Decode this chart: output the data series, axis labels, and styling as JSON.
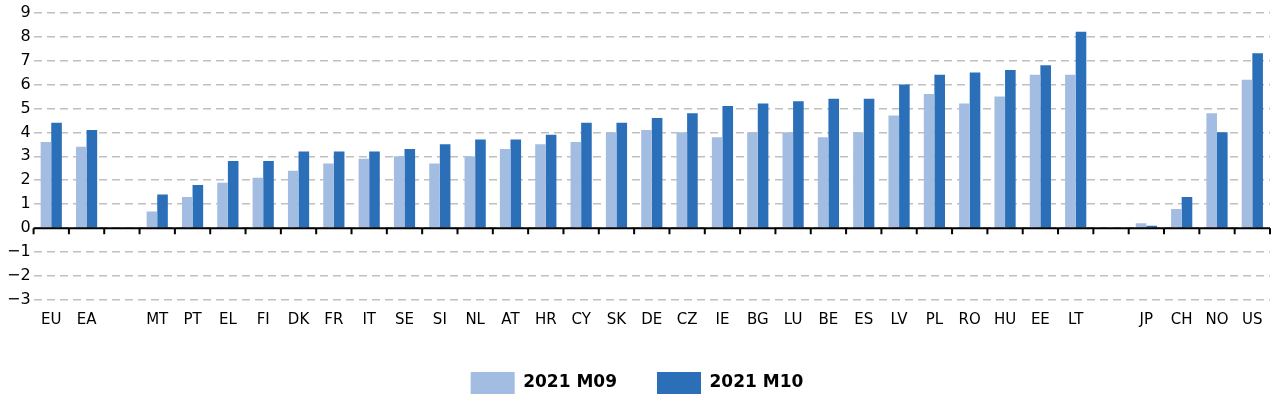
{
  "chart_data": {
    "type": "bar",
    "categories": [
      "EU",
      "EA",
      null,
      "MT",
      "PT",
      "EL",
      "FI",
      "DK",
      "FR",
      "IT",
      "SE",
      "SI",
      "NL",
      "AT",
      "HR",
      "CY",
      "SK",
      "DE",
      "CZ",
      "IE",
      "BG",
      "LU",
      "BE",
      "ES",
      "LV",
      "PL",
      "RO",
      "HU",
      "EE",
      "LT",
      null,
      "JP",
      "CH",
      "NO",
      "US"
    ],
    "series": [
      {
        "name": "2021 M09",
        "color": "#a3bce2",
        "values": [
          3.6,
          3.4,
          null,
          0.7,
          1.3,
          1.9,
          2.1,
          2.4,
          2.7,
          2.9,
          3.0,
          2.7,
          3.0,
          3.3,
          3.5,
          3.6,
          4.0,
          4.1,
          4.0,
          3.8,
          4.0,
          4.0,
          3.8,
          4.0,
          4.7,
          5.6,
          5.2,
          5.5,
          6.4,
          6.4,
          null,
          0.2,
          0.8,
          4.8,
          6.2
        ]
      },
      {
        "name": "2021 M10",
        "color": "#2a6fb8",
        "values": [
          4.4,
          4.1,
          null,
          1.4,
          1.8,
          2.8,
          2.8,
          3.2,
          3.2,
          3.2,
          3.3,
          3.5,
          3.7,
          3.7,
          3.9,
          4.4,
          4.4,
          4.6,
          4.8,
          5.1,
          5.2,
          5.3,
          5.4,
          5.4,
          6.0,
          6.4,
          6.5,
          6.6,
          6.8,
          8.2,
          null,
          0.1,
          1.3,
          4.0,
          7.3
        ]
      }
    ],
    "ylim": [
      -3,
      9
    ],
    "yticks": [
      {
        "value": -3,
        "label": "−3"
      },
      {
        "value": -2,
        "label": "−2"
      },
      {
        "value": -1,
        "label": "−1"
      },
      0,
      1,
      2,
      3,
      4,
      5,
      6,
      7,
      8,
      9
    ],
    "grid": "y",
    "line_style": "dashed",
    "legend": "bottom"
  }
}
